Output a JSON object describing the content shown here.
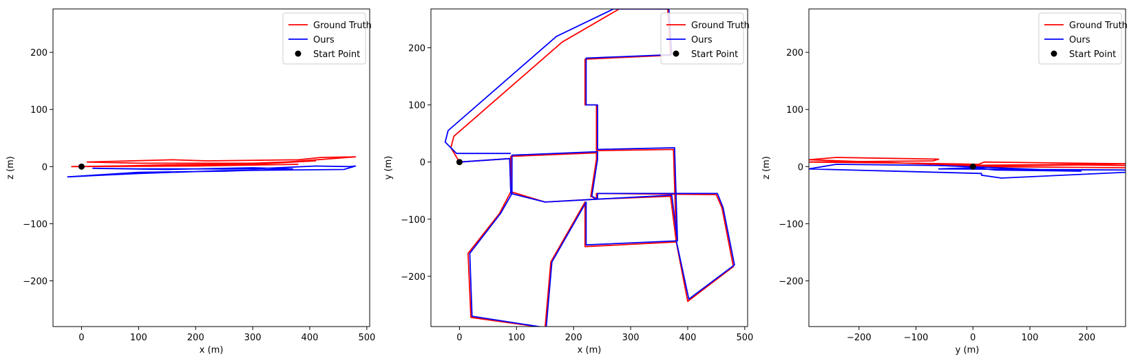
{
  "chart_data": [
    {
      "type": "line",
      "xlabel": "x (m)",
      "ylabel": "z (m)",
      "xlim": [
        -50,
        505
      ],
      "ylim": [
        -280,
        276
      ],
      "xticks": [
        "0",
        "100",
        "200",
        "300",
        "400",
        "500"
      ],
      "yticks": [
        "200",
        "100",
        "0",
        "−100",
        "−200"
      ],
      "xtick_values": [
        0,
        100,
        200,
        300,
        400,
        500
      ],
      "ytick_values": [
        200,
        100,
        0,
        -100,
        -200
      ],
      "legend": [
        "Ground Truth",
        "Ours",
        "Start Point"
      ],
      "legend_position": "top-right",
      "series": [
        {
          "name": "Ground Truth",
          "color": "#ff0000",
          "points": [
            [
              -18,
              0
            ],
            [
              60,
              1
            ],
            [
              150,
              3
            ],
            [
              240,
              4
            ],
            [
              360,
              8
            ],
            [
              480,
              17
            ],
            [
              420,
              16
            ],
            [
              380,
              12
            ],
            [
              220,
              10
            ],
            [
              160,
              12
            ],
            [
              10,
              8
            ],
            [
              100,
              6
            ],
            [
              300,
              6
            ],
            [
              410,
              10
            ],
            [
              300,
              4
            ],
            [
              120,
              2
            ],
            [
              -10,
              0
            ],
            [
              200,
              1
            ],
            [
              380,
              4
            ]
          ]
        },
        {
          "name": "Ours",
          "color": "#0000ff",
          "points": [
            [
              -25,
              -18
            ],
            [
              100,
              -10
            ],
            [
              250,
              -8
            ],
            [
              370,
              -4
            ],
            [
              300,
              -2
            ],
            [
              150,
              -5
            ],
            [
              20,
              -3
            ],
            [
              100,
              -4
            ],
            [
              300,
              -4
            ],
            [
              410,
              1
            ],
            [
              470,
              0
            ],
            [
              480,
              1
            ],
            [
              460,
              -5
            ],
            [
              250,
              -7
            ],
            [
              100,
              -12
            ],
            [
              -25,
              -18
            ]
          ]
        },
        {
          "name": "Start Point",
          "color": "#000000",
          "points": [
            [
              0,
              0
            ]
          ]
        }
      ]
    },
    {
      "type": "line",
      "xlabel": "x (m)",
      "ylabel": "y (m)",
      "xlim": [
        -50,
        505
      ],
      "ylim": [
        -288,
        268
      ],
      "xticks": [
        "0",
        "100",
        "200",
        "300",
        "400",
        "500"
      ],
      "yticks": [
        "200",
        "100",
        "0",
        "−100",
        "−200"
      ],
      "xtick_values": [
        0,
        100,
        200,
        300,
        400,
        500
      ],
      "ytick_values": [
        200,
        100,
        0,
        -100,
        -200
      ],
      "legend": [
        "Ground Truth",
        "Ours",
        "Start Point"
      ],
      "legend_position": "top-right",
      "series": [
        {
          "name": "Ground Truth",
          "color": "#ff0000",
          "points": [
            [
              0,
              0
            ],
            [
              88,
              6
            ],
            [
              90,
              -52
            ],
            [
              150,
              -70
            ],
            [
              240,
              -65
            ],
            [
              240,
              -55
            ],
            [
              450,
              -57
            ],
            [
              460,
              -80
            ],
            [
              480,
              -183
            ],
            [
              400,
              -244
            ],
            [
              380,
              -140
            ],
            [
              220,
              -148
            ],
            [
              220,
              -70
            ],
            [
              160,
              -175
            ],
            [
              150,
              -290
            ],
            [
              20,
              -272
            ],
            [
              15,
              -160
            ],
            [
              70,
              -90
            ],
            [
              90,
              -52
            ],
            [
              90,
              10
            ],
            [
              240,
              16
            ],
            [
              240,
              5
            ],
            [
              230,
              -60
            ],
            [
              240,
              -65
            ],
            [
              370,
              -60
            ],
            [
              380,
              -140
            ],
            [
              375,
              22
            ],
            [
              240,
              20
            ],
            [
              240,
              100
            ],
            [
              220,
              100
            ],
            [
              220,
              180
            ],
            [
              370,
              187
            ],
            [
              365,
              268
            ],
            [
              280,
              268
            ],
            [
              180,
              210
            ],
            [
              -10,
              45
            ],
            [
              -15,
              25
            ],
            [
              0,
              0
            ]
          ]
        },
        {
          "name": "Ours",
          "color": "#0000ff",
          "points": [
            [
              0,
              0
            ],
            [
              88,
              6
            ],
            [
              90,
              -55
            ],
            [
              150,
              -70
            ],
            [
              242,
              -65
            ],
            [
              242,
              -55
            ],
            [
              452,
              -55
            ],
            [
              462,
              -80
            ],
            [
              482,
              -180
            ],
            [
              402,
              -240
            ],
            [
              380,
              -138
            ],
            [
              222,
              -145
            ],
            [
              222,
              -70
            ],
            [
              162,
              -175
            ],
            [
              152,
              -290
            ],
            [
              22,
              -270
            ],
            [
              18,
              -160
            ],
            [
              72,
              -90
            ],
            [
              92,
              -55
            ],
            [
              92,
              12
            ],
            [
              242,
              18
            ],
            [
              242,
              5
            ],
            [
              232,
              -60
            ],
            [
              242,
              -65
            ],
            [
              372,
              -58
            ],
            [
              382,
              -138
            ],
            [
              377,
              25
            ],
            [
              242,
              22
            ],
            [
              242,
              100
            ],
            [
              222,
              100
            ],
            [
              222,
              182
            ],
            [
              372,
              188
            ],
            [
              367,
              268
            ],
            [
              270,
              268
            ],
            [
              170,
              220
            ],
            [
              -20,
              55
            ],
            [
              -25,
              35
            ],
            [
              -5,
              15
            ],
            [
              90,
              15
            ]
          ]
        },
        {
          "name": "Start Point",
          "color": "#000000",
          "points": [
            [
              0,
              0
            ]
          ]
        }
      ]
    },
    {
      "type": "line",
      "xlabel": "y (m)",
      "ylabel": "z (m)",
      "xlim": [
        -288,
        268
      ],
      "ylim": [
        -280,
        276
      ],
      "xticks": [
        "−200",
        "−100",
        "0",
        "100",
        "200"
      ],
      "yticks": [
        "200",
        "100",
        "0",
        "−100",
        "−200"
      ],
      "xtick_values": [
        -200,
        -100,
        0,
        100,
        200
      ],
      "ytick_values": [
        200,
        100,
        0,
        -100,
        -200
      ],
      "legend": [
        "Ground Truth",
        "Ours",
        "Start Point"
      ],
      "legend_position": "top-right",
      "series": [
        {
          "name": "Ground Truth",
          "color": "#ff0000",
          "points": [
            [
              268,
              2
            ],
            [
              190,
              3
            ],
            [
              20,
              1
            ],
            [
              -288,
              12
            ],
            [
              -240,
              16
            ],
            [
              -60,
              13
            ],
            [
              -70,
              10
            ],
            [
              -288,
              8
            ],
            [
              -100,
              6
            ],
            [
              10,
              4
            ],
            [
              20,
              8
            ],
            [
              268,
              5
            ],
            [
              100,
              3
            ],
            [
              -60,
              2
            ],
            [
              0,
              0
            ],
            [
              268,
              -2
            ]
          ]
        },
        {
          "name": "Ours",
          "color": "#0000ff",
          "points": [
            [
              268,
              -10
            ],
            [
              50,
              -20
            ],
            [
              15,
              -15
            ],
            [
              15,
              -12
            ],
            [
              -288,
              -4
            ],
            [
              -240,
              4
            ],
            [
              -60,
              2
            ],
            [
              190,
              -8
            ],
            [
              40,
              -6
            ],
            [
              0,
              -2
            ],
            [
              -60,
              -4
            ],
            [
              268,
              -6
            ]
          ]
        },
        {
          "name": "Start Point",
          "color": "#000000",
          "points": [
            [
              0,
              0
            ]
          ]
        }
      ]
    }
  ]
}
